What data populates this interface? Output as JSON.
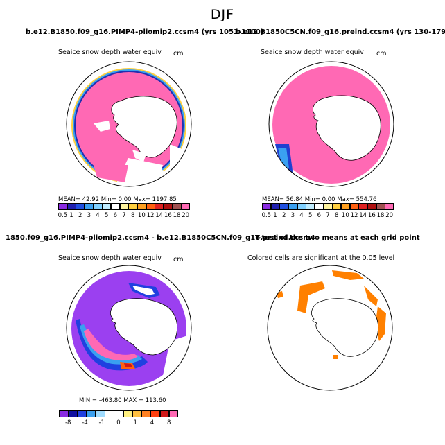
{
  "figure": {
    "title": "DJF"
  },
  "panels": [
    {
      "run_title": "b.e12.B1850.f09_g16.PIMP4-pliomip2.ccsm4 (yrs 1051-1100)",
      "var_title": "Seaice snow depth water equiv",
      "units": "cm",
      "stats": "MEAN=   42.92  Min=    0.00  Max= 1197.85"
    },
    {
      "run_title": "b.e12.B1850C5CN.f09_g16.preind.ccsm4 (yrs 130-179)",
      "var_title": "Seaice snow depth water equiv",
      "units": "cm",
      "stats": "MEAN=   56.84  Min=    0.00  Max=  554.76"
    },
    {
      "run_title": "1850.f09_g16.PIMP4-pliomip2.ccsm4 - b.e12.B1850C5CN.f09_g16.preind.ccsm4",
      "var_title": "Seaice snow depth water equiv",
      "units": "cm",
      "stats": "MIN = -463.80  MAX = 113.60"
    },
    {
      "run_title": "T-test of the two means at each grid point",
      "var_title": "Colored cells are significant at the 0.05 level"
    }
  ],
  "colorbar_abs": {
    "labels": [
      "0.5",
      "1",
      "2",
      "3",
      "4",
      "5",
      "6",
      "7",
      "8",
      "10",
      "12",
      "14",
      "16",
      "18",
      "20"
    ],
    "colors": [
      "#8a2be2",
      "#2020b0",
      "#2050e0",
      "#3aa0f0",
      "#80d0ff",
      "#c0ecff",
      "#ffffff",
      "#fff4a0",
      "#ffd040",
      "#ffa020",
      "#ff6010",
      "#e02020",
      "#b01010",
      "#a05050",
      "#ff69b4"
    ]
  },
  "colorbar_diff": {
    "labels": [
      "-8",
      "-4",
      "-1",
      "0",
      "1",
      "4",
      "8"
    ],
    "colors": [
      "#8a2be2",
      "#1010a0",
      "#2040e0",
      "#3aa0f0",
      "#a0dcff",
      "#ffffff",
      "#ffffff",
      "#fff080",
      "#ffc040",
      "#ff8020",
      "#ff4010",
      "#d01818",
      "#ff69b4"
    ]
  },
  "legend_colors": {
    "sea_ice_mean": "#ff69b4",
    "difference_negative": "#9b40f0",
    "significant": "#ff8000",
    "land": "#ffffff"
  }
}
